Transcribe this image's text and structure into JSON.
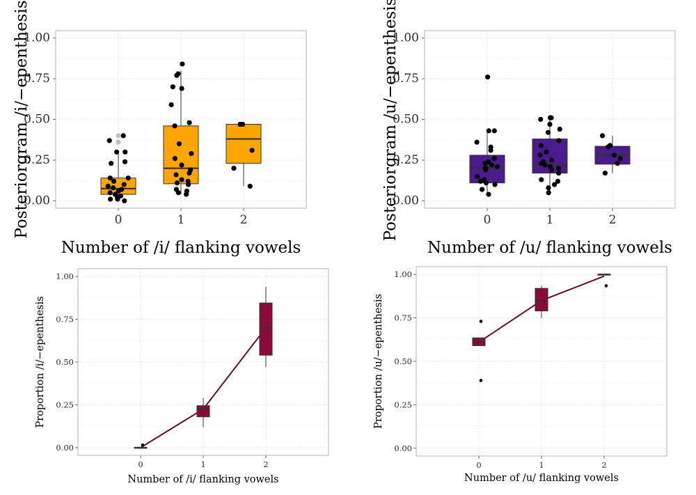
{
  "chart_data": [
    {
      "type": "boxplot",
      "xlabel": "Number of /i/ flanking vowels",
      "ylabel": "Posteriorgram /i/−epenthesis",
      "categories": [
        "0",
        "1",
        "2"
      ],
      "ylim": [
        0,
        1
      ],
      "yticks": [
        "0.00",
        "0.25",
        "0.50",
        "0.75",
        "1.00"
      ],
      "grid": true,
      "fill": "#FFA500",
      "boxes": [
        {
          "min": 0.0,
          "q1": 0.04,
          "median": 0.075,
          "q3": 0.14,
          "max": 0.29
        },
        {
          "min": 0.04,
          "q1": 0.105,
          "median": 0.2,
          "q3": 0.46,
          "max": 0.8
        },
        {
          "min": 0.09,
          "q1": 0.23,
          "median": 0.38,
          "q3": 0.47,
          "max": 0.48
        }
      ],
      "outliers": [
        {
          "x": "0",
          "y": 0.4
        },
        {
          "x": "0",
          "y": 0.36
        }
      ],
      "points": [
        {
          "x": 0,
          "values": [
            0.4,
            0.37,
            0.3,
            0.3,
            0.23,
            0.24,
            0.14,
            0.14,
            0.12,
            0.1,
            0.09,
            0.08,
            0.07,
            0.06,
            0.05,
            0.04,
            0.03,
            0.02,
            0.01,
            0.01,
            0.0
          ]
        },
        {
          "x": 1,
          "values": [
            0.84,
            0.78,
            0.77,
            0.69,
            0.7,
            0.59,
            0.48,
            0.46,
            0.35,
            0.29,
            0.26,
            0.22,
            0.19,
            0.17,
            0.16,
            0.13,
            0.12,
            0.11,
            0.1,
            0.07,
            0.06,
            0.05,
            0.04
          ]
        },
        {
          "x": 2,
          "values": [
            0.47,
            0.47,
            0.31,
            0.2,
            0.09
          ]
        }
      ]
    },
    {
      "type": "boxplot",
      "xlabel": "Number of /u/ flanking vowels",
      "ylabel": "Posteriorgram /u/−epenthesis",
      "categories": [
        "0",
        "1",
        "2"
      ],
      "ylim": [
        0,
        1
      ],
      "yticks": [
        "0.00",
        "0.25",
        "0.50",
        "0.75",
        "1.00"
      ],
      "grid": true,
      "fill": "#4B1A8C",
      "boxes": [
        {
          "min": 0.04,
          "q1": 0.11,
          "median": 0.2,
          "q3": 0.28,
          "max": 0.43
        },
        {
          "min": 0.05,
          "q1": 0.17,
          "median": 0.22,
          "q3": 0.38,
          "max": 0.51
        },
        {
          "min": 0.17,
          "q1": 0.225,
          "median": 0.28,
          "q3": 0.335,
          "max": 0.4
        }
      ],
      "outliers": [
        {
          "x": "0",
          "y": 0.76
        }
      ],
      "points": [
        {
          "x": 0,
          "values": [
            0.76,
            0.43,
            0.43,
            0.36,
            0.33,
            0.31,
            0.26,
            0.24,
            0.23,
            0.22,
            0.21,
            0.2,
            0.2,
            0.19,
            0.15,
            0.13,
            0.12,
            0.11,
            0.1,
            0.07,
            0.04
          ]
        },
        {
          "x": 1,
          "values": [
            0.51,
            0.51,
            0.5,
            0.47,
            0.44,
            0.42,
            0.37,
            0.34,
            0.3,
            0.28,
            0.25,
            0.24,
            0.23,
            0.22,
            0.21,
            0.2,
            0.19,
            0.17,
            0.13,
            0.12,
            0.1,
            0.08,
            0.05
          ]
        },
        {
          "x": 2,
          "values": [
            0.4,
            0.34,
            0.33,
            0.28,
            0.26,
            0.23,
            0.17
          ]
        }
      ]
    },
    {
      "type": "boxplot",
      "xlabel": "Number of /i/ flanking vowels",
      "ylabel": "Proportion /i/−epenthesis",
      "categories": [
        "0",
        "1",
        "2"
      ],
      "ylim": [
        0,
        1
      ],
      "yticks": [
        "0.00",
        "0.25",
        "0.50",
        "0.75",
        "1.00"
      ],
      "grid": true,
      "fill": "#8B0A3A",
      "line_color": "#6B0A2E",
      "boxes": [
        {
          "min": 0.0,
          "q1": 0.0,
          "median": 0.0,
          "q3": 0.0,
          "max": 0.0
        },
        {
          "min": 0.12,
          "q1": 0.18,
          "median": 0.225,
          "q3": 0.245,
          "max": 0.29
        },
        {
          "min": 0.47,
          "q1": 0.54,
          "median": 0.7,
          "q3": 0.845,
          "max": 0.94
        }
      ],
      "outliers": [
        {
          "x": "0",
          "y": 0.015
        }
      ],
      "mean_line": [
        0.0,
        0.225,
        0.7
      ]
    },
    {
      "type": "boxplot",
      "xlabel": "Number of /u/ flanking vowels",
      "ylabel": "Proportion /u/−epenthesis",
      "categories": [
        "0",
        "1",
        "2"
      ],
      "ylim": [
        0,
        1
      ],
      "yticks": [
        "0.00",
        "0.25",
        "0.50",
        "0.75",
        "1.00"
      ],
      "grid": true,
      "fill": "#8B0A3A",
      "line_color": "#6B0A2E",
      "boxes": [
        {
          "min": 0.59,
          "q1": 0.59,
          "median": 0.61,
          "q3": 0.635,
          "max": 0.635
        },
        {
          "min": 0.75,
          "q1": 0.79,
          "median": 0.85,
          "q3": 0.92,
          "max": 0.935
        },
        {
          "min": 1.0,
          "q1": 1.0,
          "median": 1.0,
          "q3": 1.0,
          "max": 1.0
        }
      ],
      "outliers": [
        {
          "x": "0",
          "y": 0.73
        },
        {
          "x": "0",
          "y": 0.39
        },
        {
          "x": "2",
          "y": 0.935
        }
      ],
      "mean_line": [
        0.61,
        0.85,
        0.99
      ]
    }
  ]
}
